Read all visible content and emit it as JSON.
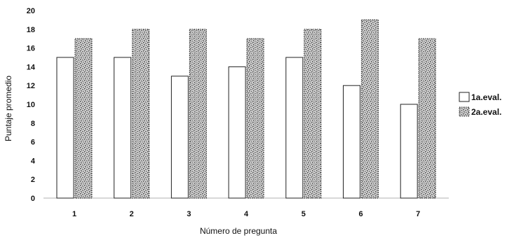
{
  "chart_data": {
    "type": "bar",
    "title": "",
    "xlabel": "Número de pregunta",
    "ylabel": "Puntaje promedio",
    "categories": [
      "1",
      "2",
      "3",
      "4",
      "5",
      "6",
      "7"
    ],
    "ylim": [
      0,
      20
    ],
    "yticks": [
      0,
      2,
      4,
      6,
      8,
      10,
      12,
      14,
      16,
      18,
      20
    ],
    "grid": false,
    "legend_position": "right",
    "series": [
      {
        "name": "1a.eval.",
        "values": [
          15,
          15,
          13,
          14,
          15,
          12,
          10
        ],
        "color": "#ffffff",
        "style": "outline"
      },
      {
        "name": "2a.eval.",
        "values": [
          17,
          18,
          18,
          17,
          18,
          19,
          17
        ],
        "color": "#9a9a9a",
        "style": "stippled"
      }
    ]
  }
}
